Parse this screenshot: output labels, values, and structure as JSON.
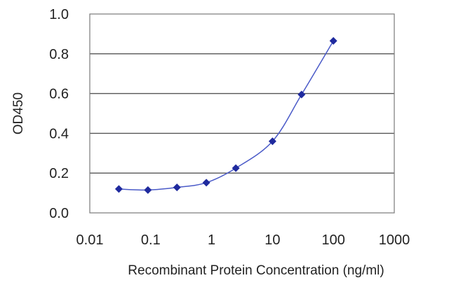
{
  "chart_data": {
    "type": "line",
    "xlabel": "Recombinant Protein Concentration (ng/ml)",
    "ylabel": "OD450",
    "x_scale": "log",
    "xlim": [
      0.01,
      1000
    ],
    "ylim": [
      0,
      1.0
    ],
    "x_ticks": [
      "0.01",
      "0.1",
      "1",
      "10",
      "100",
      "1000"
    ],
    "y_ticks": [
      "0.0",
      "0.2",
      "0.4",
      "0.6",
      "0.8",
      "1.0"
    ],
    "grid": "horizontal",
    "series": [
      {
        "color": "#1f2a9e",
        "x": [
          0.03,
          0.09,
          0.27,
          0.82,
          2.5,
          10,
          30,
          100
        ],
        "y": [
          0.12,
          0.115,
          0.128,
          0.152,
          0.225,
          0.36,
          0.595,
          0.865
        ]
      }
    ]
  }
}
